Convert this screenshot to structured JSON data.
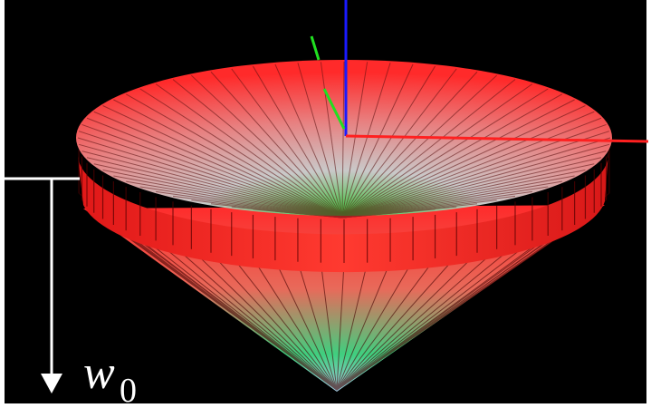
{
  "annotation": {
    "symbol": "w",
    "subscript": "0"
  }
}
